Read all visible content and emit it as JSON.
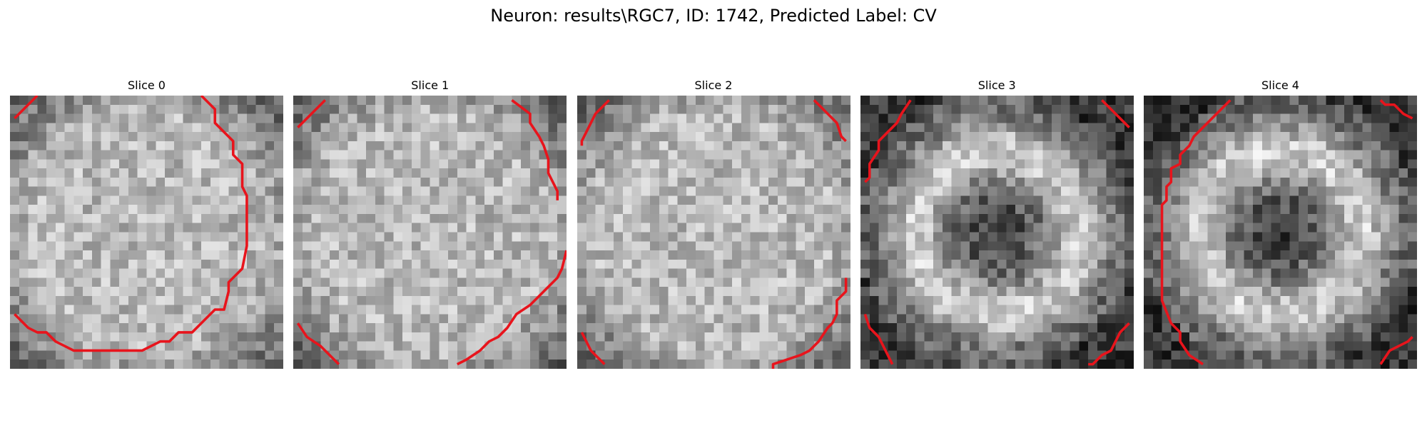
{
  "figure": {
    "title": "Neuron: results\\RGC7, ID: 1742, Predicted Label: CV",
    "contour_color": "#e8141c"
  },
  "panels": [
    {
      "title": "Slice 0",
      "pattern": "bright-disk",
      "seed": 11,
      "contours": 3
    },
    {
      "title": "Slice 1",
      "pattern": "bright-disk",
      "seed": 23,
      "contours": 4
    },
    {
      "title": "Slice 2",
      "pattern": "bright-disk",
      "seed": 37,
      "contours": 4
    },
    {
      "title": "Slice 3",
      "pattern": "ring-dark-center",
      "seed": 41,
      "contours": 4
    },
    {
      "title": "Slice 4",
      "pattern": "ring-dark-center",
      "seed": 53,
      "contours": 3
    }
  ]
}
